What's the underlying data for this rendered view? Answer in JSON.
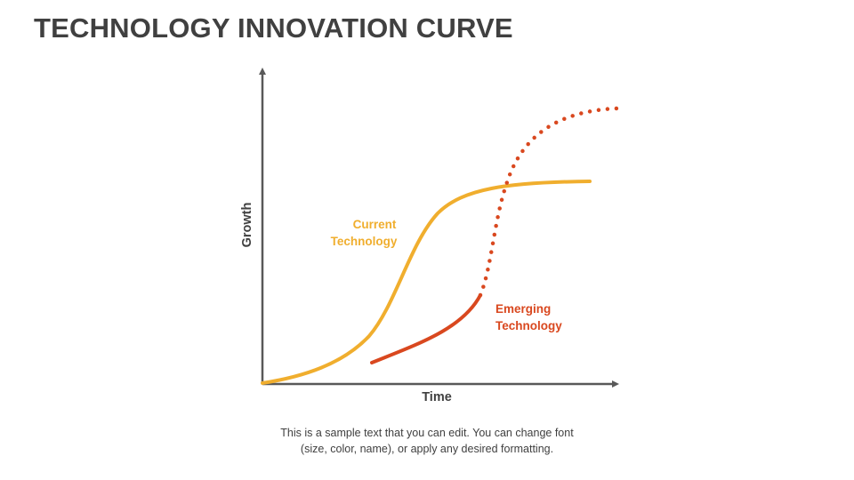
{
  "title": "TECHNOLOGY INNOVATION CURVE",
  "axes": {
    "y_label": "Growth",
    "x_label": "Time"
  },
  "curves": {
    "current": {
      "label_line1": "Current",
      "label_line2": "Technology",
      "color": "#F0AE2E"
    },
    "emerging": {
      "label_line1": "Emerging",
      "label_line2": "Technology",
      "color": "#D9481F"
    }
  },
  "colors": {
    "axis": "#595959",
    "title": "#404040"
  },
  "caption": {
    "line1": "This is a sample text that you can edit. You can change font",
    "line2": "(size, color, name), or apply any desired formatting."
  }
}
